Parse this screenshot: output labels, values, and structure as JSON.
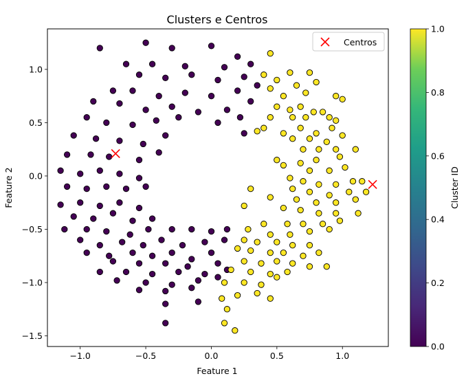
{
  "chart_data": {
    "type": "scatter",
    "title": "Clusters e Centros",
    "xlabel": "Feature 1",
    "ylabel": "Feature 2",
    "xlim": [
      -1.25,
      1.35
    ],
    "ylim": [
      -1.6,
      1.38
    ],
    "xticks": [
      -1.0,
      -0.5,
      0.0,
      0.5,
      1.0
    ],
    "xtick_labels": [
      "−1.0",
      "−0.5",
      "0.0",
      "0.5",
      "1.0"
    ],
    "yticks": [
      -1.5,
      -1.0,
      -0.5,
      0.0,
      0.5,
      1.0
    ],
    "ytick_labels": [
      "−1.5",
      "−1.0",
      "−0.5",
      "0.0",
      "0.5",
      "1.0"
    ],
    "grid": false,
    "legend": {
      "position": "top-right",
      "entries": [
        {
          "label": "Centros",
          "marker": "x",
          "color": "#ff0000"
        }
      ]
    },
    "colorbar": {
      "label": "Cluster ID",
      "range": [
        0.0,
        1.0
      ],
      "ticks": [
        0.0,
        0.2,
        0.4,
        0.6,
        0.8,
        1.0
      ],
      "tick_labels": [
        "0.0",
        "0.2",
        "0.4",
        "0.6",
        "0.8",
        "1.0"
      ],
      "colormap": "viridis"
    },
    "series": [
      {
        "cluster": 0,
        "color": "#440154",
        "points": [
          [
            -0.85,
            1.2
          ],
          [
            -0.5,
            1.25
          ],
          [
            -0.3,
            1.2
          ],
          [
            0.0,
            1.22
          ],
          [
            -0.65,
            1.05
          ],
          [
            -0.45,
            1.05
          ],
          [
            -0.2,
            1.03
          ],
          [
            0.1,
            1.02
          ],
          [
            0.2,
            1.12
          ],
          [
            0.3,
            1.05
          ],
          [
            -0.55,
            0.95
          ],
          [
            -0.35,
            0.92
          ],
          [
            -0.15,
            0.95
          ],
          [
            0.05,
            0.9
          ],
          [
            0.25,
            0.93
          ],
          [
            0.35,
            0.85
          ],
          [
            -0.75,
            0.8
          ],
          [
            -0.6,
            0.8
          ],
          [
            -0.4,
            0.75
          ],
          [
            -0.2,
            0.78
          ],
          [
            0.0,
            0.75
          ],
          [
            0.2,
            0.8
          ],
          [
            -0.9,
            0.7
          ],
          [
            -0.7,
            0.68
          ],
          [
            -0.5,
            0.62
          ],
          [
            -0.3,
            0.65
          ],
          [
            -0.1,
            0.6
          ],
          [
            0.12,
            0.62
          ],
          [
            0.3,
            0.7
          ],
          [
            -0.95,
            0.55
          ],
          [
            -0.8,
            0.5
          ],
          [
            -0.6,
            0.48
          ],
          [
            -0.42,
            0.52
          ],
          [
            -0.25,
            0.55
          ],
          [
            0.05,
            0.5
          ],
          [
            0.22,
            0.55
          ],
          [
            -1.05,
            0.38
          ],
          [
            -0.88,
            0.35
          ],
          [
            -0.7,
            0.33
          ],
          [
            -0.52,
            0.3
          ],
          [
            -0.35,
            0.38
          ],
          [
            0.25,
            0.4
          ],
          [
            -1.1,
            0.2
          ],
          [
            -0.92,
            0.2
          ],
          [
            -0.78,
            0.18
          ],
          [
            -0.55,
            0.15
          ],
          [
            -0.4,
            0.22
          ],
          [
            -1.15,
            0.05
          ],
          [
            -1.0,
            0.02
          ],
          [
            -0.85,
            0.05
          ],
          [
            -0.7,
            0.02
          ],
          [
            -0.55,
            -0.02
          ],
          [
            -1.1,
            -0.1
          ],
          [
            -0.95,
            -0.12
          ],
          [
            -0.8,
            -0.1
          ],
          [
            -0.65,
            -0.12
          ],
          [
            -0.5,
            -0.1
          ],
          [
            -1.15,
            -0.27
          ],
          [
            -1.0,
            -0.25
          ],
          [
            -0.85,
            -0.28
          ],
          [
            -0.7,
            -0.25
          ],
          [
            -0.55,
            -0.3
          ],
          [
            -1.05,
            -0.38
          ],
          [
            -0.9,
            -0.4
          ],
          [
            -0.75,
            -0.35
          ],
          [
            -0.6,
            -0.42
          ],
          [
            -0.45,
            -0.4
          ],
          [
            -1.12,
            -0.5
          ],
          [
            -0.95,
            -0.5
          ],
          [
            -0.8,
            -0.52
          ],
          [
            -0.62,
            -0.55
          ],
          [
            -0.48,
            -0.5
          ],
          [
            -0.3,
            -0.5
          ],
          [
            -0.15,
            -0.5
          ],
          [
            0.0,
            -0.52
          ],
          [
            0.12,
            -0.5
          ],
          [
            -1.0,
            -0.6
          ],
          [
            -0.85,
            -0.65
          ],
          [
            -0.68,
            -0.62
          ],
          [
            -0.52,
            -0.65
          ],
          [
            -0.38,
            -0.6
          ],
          [
            -0.22,
            -0.65
          ],
          [
            -0.05,
            -0.62
          ],
          [
            0.1,
            -0.6
          ],
          [
            -0.95,
            -0.72
          ],
          [
            -0.78,
            -0.75
          ],
          [
            -0.6,
            -0.72
          ],
          [
            -0.45,
            -0.75
          ],
          [
            -0.3,
            -0.72
          ],
          [
            -0.15,
            -0.78
          ],
          [
            0.0,
            -0.72
          ],
          [
            -0.75,
            -0.8
          ],
          [
            -0.55,
            -0.82
          ],
          [
            -0.35,
            -0.82
          ],
          [
            -0.18,
            -0.85
          ],
          [
            0.05,
            -0.82
          ],
          [
            -0.85,
            -0.9
          ],
          [
            -0.65,
            -0.9
          ],
          [
            -0.45,
            -0.92
          ],
          [
            -0.25,
            -0.9
          ],
          [
            -0.05,
            -0.92
          ],
          [
            0.12,
            -0.88
          ],
          [
            -0.72,
            -0.98
          ],
          [
            -0.5,
            -1.0
          ],
          [
            -0.3,
            -1.02
          ],
          [
            -0.1,
            -0.98
          ],
          [
            0.05,
            -0.95
          ],
          [
            -0.55,
            -1.07
          ],
          [
            -0.35,
            -1.08
          ],
          [
            -0.15,
            -1.05
          ],
          [
            -0.35,
            -1.2
          ],
          [
            -0.1,
            -1.18
          ],
          [
            -0.35,
            -1.38
          ]
        ]
      },
      {
        "cluster": 1,
        "color": "#fde725",
        "points": [
          [
            0.45,
            1.15
          ],
          [
            0.6,
            0.97
          ],
          [
            0.75,
            0.97
          ],
          [
            0.8,
            0.88
          ],
          [
            0.4,
            0.95
          ],
          [
            0.5,
            0.9
          ],
          [
            0.65,
            0.85
          ],
          [
            0.45,
            0.82
          ],
          [
            0.55,
            0.75
          ],
          [
            0.72,
            0.78
          ],
          [
            0.95,
            0.75
          ],
          [
            1.0,
            0.72
          ],
          [
            0.5,
            0.65
          ],
          [
            0.6,
            0.62
          ],
          [
            0.68,
            0.65
          ],
          [
            0.78,
            0.6
          ],
          [
            0.85,
            0.6
          ],
          [
            0.9,
            0.55
          ],
          [
            0.45,
            0.55
          ],
          [
            0.62,
            0.55
          ],
          [
            0.72,
            0.55
          ],
          [
            0.95,
            0.52
          ],
          [
            0.4,
            0.45
          ],
          [
            0.55,
            0.4
          ],
          [
            0.68,
            0.45
          ],
          [
            0.8,
            0.4
          ],
          [
            0.92,
            0.45
          ],
          [
            0.35,
            0.42
          ],
          [
            0.62,
            0.35
          ],
          [
            0.75,
            0.35
          ],
          [
            0.88,
            0.32
          ],
          [
            1.0,
            0.38
          ],
          [
            0.7,
            0.25
          ],
          [
            0.82,
            0.25
          ],
          [
            0.95,
            0.25
          ],
          [
            1.1,
            0.25
          ],
          [
            0.5,
            0.15
          ],
          [
            0.68,
            0.12
          ],
          [
            0.8,
            0.15
          ],
          [
            0.98,
            0.18
          ],
          [
            0.55,
            0.1
          ],
          [
            0.75,
            0.05
          ],
          [
            0.9,
            0.05
          ],
          [
            1.02,
            0.08
          ],
          [
            0.6,
            -0.02
          ],
          [
            0.7,
            -0.05
          ],
          [
            0.82,
            -0.08
          ],
          [
            0.95,
            -0.08
          ],
          [
            1.08,
            -0.05
          ],
          [
            1.15,
            -0.05
          ],
          [
            0.3,
            -0.12
          ],
          [
            0.62,
            -0.12
          ],
          [
            0.75,
            -0.15
          ],
          [
            0.9,
            -0.18
          ],
          [
            1.05,
            -0.15
          ],
          [
            1.18,
            -0.15
          ],
          [
            0.45,
            -0.2
          ],
          [
            0.65,
            -0.22
          ],
          [
            0.8,
            -0.25
          ],
          [
            0.95,
            -0.25
          ],
          [
            1.1,
            -0.22
          ],
          [
            0.25,
            -0.28
          ],
          [
            0.55,
            -0.3
          ],
          [
            0.68,
            -0.32
          ],
          [
            0.82,
            -0.35
          ],
          [
            0.95,
            -0.35
          ],
          [
            1.12,
            -0.35
          ],
          [
            0.4,
            -0.45
          ],
          [
            0.58,
            -0.45
          ],
          [
            0.7,
            -0.45
          ],
          [
            0.85,
            -0.45
          ],
          [
            0.98,
            -0.42
          ],
          [
            0.28,
            -0.5
          ],
          [
            0.45,
            -0.55
          ],
          [
            0.6,
            -0.55
          ],
          [
            0.75,
            -0.52
          ],
          [
            0.9,
            -0.5
          ],
          [
            0.25,
            -0.6
          ],
          [
            0.35,
            -0.62
          ],
          [
            0.5,
            -0.62
          ],
          [
            0.62,
            -0.65
          ],
          [
            0.75,
            -0.65
          ],
          [
            0.2,
            -0.68
          ],
          [
            0.3,
            -0.7
          ],
          [
            0.45,
            -0.72
          ],
          [
            0.55,
            -0.72
          ],
          [
            0.7,
            -0.75
          ],
          [
            0.82,
            -0.72
          ],
          [
            0.25,
            -0.8
          ],
          [
            0.38,
            -0.82
          ],
          [
            0.5,
            -0.8
          ],
          [
            0.62,
            -0.82
          ],
          [
            0.75,
            -0.85
          ],
          [
            0.88,
            -0.85
          ],
          [
            0.15,
            -0.88
          ],
          [
            0.3,
            -0.9
          ],
          [
            0.45,
            -0.92
          ],
          [
            0.58,
            -0.9
          ],
          [
            0.1,
            -1.0
          ],
          [
            0.25,
            -1.0
          ],
          [
            0.38,
            -1.02
          ],
          [
            0.5,
            -0.95
          ],
          [
            0.08,
            -1.15
          ],
          [
            0.2,
            -1.12
          ],
          [
            0.35,
            -1.1
          ],
          [
            0.45,
            -1.15
          ],
          [
            0.12,
            -1.25
          ],
          [
            0.1,
            -1.38
          ],
          [
            0.18,
            -1.45
          ]
        ]
      }
    ],
    "centers": [
      [
        -0.73,
        0.21
      ],
      [
        1.23,
        -0.08
      ]
    ],
    "centers_color": "#ff0000"
  }
}
